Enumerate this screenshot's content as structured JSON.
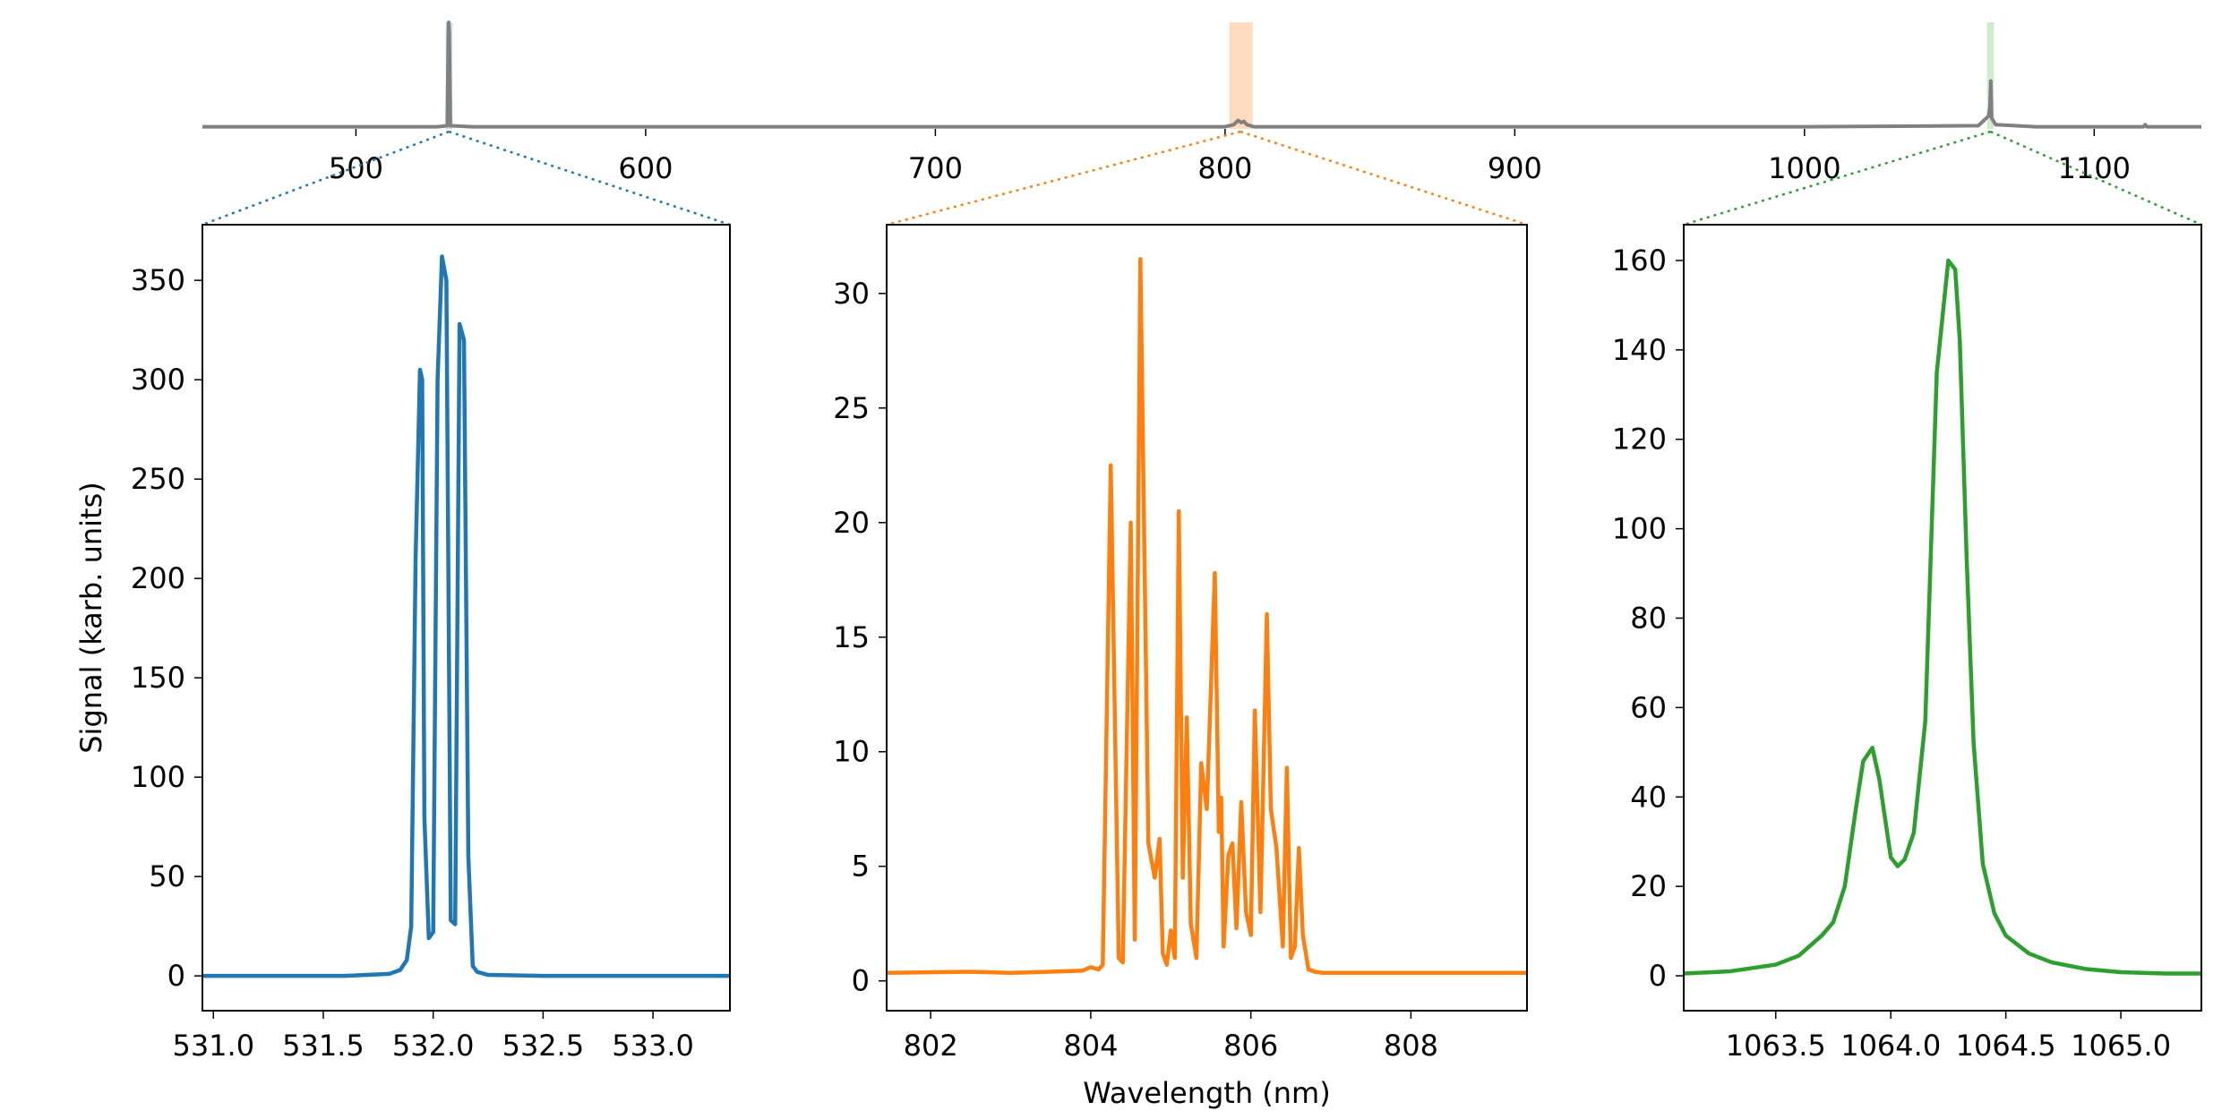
{
  "colors": {
    "panel_green_blue": "#1f77b4",
    "panel_orange": "#ff7f0e",
    "panel_green": "#2ca02c",
    "overview_line": "#808080",
    "orange_band": "#ffdcc0",
    "green_band": "#cfeccf"
  },
  "chart_data": [
    {
      "id": "overview",
      "type": "line",
      "xlim": [
        447,
        1137
      ],
      "ylim": [
        0,
        1
      ],
      "x_ticks": [
        500,
        600,
        700,
        800,
        900,
        1000,
        1100
      ],
      "x_tick_labels": [
        "500",
        "600",
        "700",
        "800",
        "900",
        "1000",
        "1100"
      ],
      "highlights": [
        {
          "x0": 531.0,
          "x1": 533.3,
          "color": "#c6dbef"
        },
        {
          "x0": 801.5,
          "x1": 809.5,
          "color": "#ffdcc0"
        },
        {
          "x0": 1063.0,
          "x1": 1065.4,
          "color": "#cfeccf"
        }
      ],
      "series": [
        {
          "color": "#808080",
          "x": [
            447,
            528,
            531.5,
            531.9,
            532.0,
            532.1,
            532.2,
            532.6,
            540,
            700,
            800,
            803,
            804.5,
            805.5,
            806.5,
            807.5,
            810,
            900,
            1000,
            1060,
            1063.5,
            1064.0,
            1064.3,
            1064.6,
            1066,
            1080,
            1117,
            1117.6,
            1118.2,
            1137
          ],
          "y": [
            0.02,
            0.02,
            0.03,
            0.9,
            1.0,
            0.95,
            0.9,
            0.03,
            0.02,
            0.02,
            0.02,
            0.04,
            0.08,
            0.06,
            0.07,
            0.04,
            0.02,
            0.02,
            0.02,
            0.03,
            0.12,
            0.2,
            0.45,
            0.1,
            0.04,
            0.02,
            0.02,
            0.04,
            0.02,
            0.02
          ]
        }
      ]
    },
    {
      "id": "panel1",
      "type": "line",
      "xlim": [
        530.95,
        533.35
      ],
      "ylim": [
        -17.5,
        378
      ],
      "x_ticks": [
        531.0,
        531.5,
        532.0,
        532.5,
        533.0
      ],
      "x_tick_labels": [
        "531.0",
        "531.5",
        "532.0",
        "532.5",
        "533.0"
      ],
      "y_ticks": [
        0,
        50,
        100,
        150,
        200,
        250,
        300,
        350
      ],
      "y_tick_labels": [
        "0",
        "50",
        "100",
        "150",
        "200",
        "250",
        "300",
        "350"
      ],
      "ylabel": "Signal (karb. units)",
      "series": [
        {
          "color": "#1f77b4",
          "x": [
            530.95,
            531.3,
            531.6,
            531.8,
            531.85,
            531.88,
            531.9,
            531.92,
            531.94,
            531.95,
            531.96,
            531.98,
            532.0,
            532.02,
            532.04,
            532.06,
            532.08,
            532.1,
            532.12,
            532.14,
            532.16,
            532.18,
            532.2,
            532.25,
            532.5,
            533.0,
            533.35
          ],
          "y": [
            0,
            0,
            0,
            1,
            3,
            8,
            25,
            210,
            305,
            300,
            80,
            19,
            22,
            300,
            362,
            350,
            28,
            26,
            328,
            320,
            60,
            5,
            2,
            0.5,
            0,
            0,
            0
          ]
        }
      ]
    },
    {
      "id": "panel2",
      "type": "line",
      "xlim": [
        801.45,
        809.45
      ],
      "ylim": [
        -1.3,
        33
      ],
      "x_ticks": [
        802,
        804,
        806,
        808
      ],
      "x_tick_labels": [
        "802",
        "804",
        "806",
        "808"
      ],
      "y_ticks": [
        0,
        5,
        10,
        15,
        20,
        25,
        30
      ],
      "y_tick_labels": [
        "0",
        "5",
        "10",
        "15",
        "20",
        "25",
        "30"
      ],
      "xlabel": "Wavelength (nm)",
      "series": [
        {
          "color": "#ff7f0e",
          "x": [
            801.45,
            802.5,
            803.0,
            803.5,
            803.9,
            804.0,
            804.1,
            804.15,
            804.25,
            804.35,
            804.4,
            804.5,
            804.55,
            804.62,
            804.72,
            804.8,
            804.86,
            804.9,
            804.95,
            805.0,
            805.05,
            805.1,
            805.15,
            805.2,
            805.25,
            805.32,
            805.38,
            805.45,
            805.55,
            805.6,
            805.63,
            805.66,
            805.72,
            805.77,
            805.82,
            805.88,
            805.94,
            806.0,
            806.05,
            806.12,
            806.2,
            806.25,
            806.32,
            806.4,
            806.45,
            806.5,
            806.55,
            806.6,
            806.65,
            806.72,
            806.8,
            806.9,
            807.0,
            807.5,
            808.5,
            809.45
          ],
          "y": [
            0.35,
            0.4,
            0.35,
            0.4,
            0.45,
            0.6,
            0.5,
            0.7,
            22.5,
            1.0,
            0.8,
            20,
            1.8,
            31.5,
            6.0,
            4.5,
            6.2,
            1.2,
            0.7,
            2.2,
            1.0,
            20.5,
            4.5,
            11.5,
            2.5,
            1.0,
            9.5,
            7.5,
            17.8,
            6.5,
            8.0,
            1.5,
            5.5,
            6.0,
            2.3,
            7.8,
            3.0,
            2.0,
            11.8,
            3.0,
            16.0,
            7.5,
            5.8,
            1.5,
            9.3,
            1.0,
            1.5,
            5.8,
            2.0,
            0.5,
            0.4,
            0.35,
            0.35,
            0.35,
            0.35,
            0.35
          ]
        }
      ]
    },
    {
      "id": "panel3",
      "type": "line",
      "xlim": [
        1063.1,
        1065.35
      ],
      "ylim": [
        -7.8,
        168
      ],
      "x_ticks": [
        1063.5,
        1064.0,
        1064.5,
        1065.0
      ],
      "x_tick_labels": [
        "1063.5",
        "1064.0",
        "1064.5",
        "1065.0"
      ],
      "y_ticks": [
        0,
        20,
        40,
        60,
        80,
        100,
        120,
        140,
        160
      ],
      "y_tick_labels": [
        "0",
        "20",
        "40",
        "60",
        "80",
        "100",
        "120",
        "140",
        "160"
      ],
      "series": [
        {
          "color": "#2ca02c",
          "x": [
            1063.1,
            1063.3,
            1063.5,
            1063.6,
            1063.7,
            1063.75,
            1063.8,
            1063.85,
            1063.88,
            1063.92,
            1063.95,
            1064.0,
            1064.03,
            1064.06,
            1064.1,
            1064.15,
            1064.2,
            1064.25,
            1064.28,
            1064.3,
            1064.33,
            1064.36,
            1064.4,
            1064.45,
            1064.5,
            1064.55,
            1064.6,
            1064.7,
            1064.85,
            1065.0,
            1065.2,
            1065.35
          ],
          "y": [
            0.5,
            1.0,
            2.5,
            4.5,
            9.0,
            12.0,
            20.0,
            38.0,
            48.0,
            51.0,
            44.0,
            26.5,
            24.5,
            26.0,
            32.0,
            57.0,
            135.0,
            160.0,
            158.0,
            142.0,
            93.0,
            52.0,
            25.0,
            14.0,
            9.0,
            7.0,
            5.0,
            3.0,
            1.5,
            0.8,
            0.5,
            0.5
          ]
        }
      ]
    }
  ]
}
